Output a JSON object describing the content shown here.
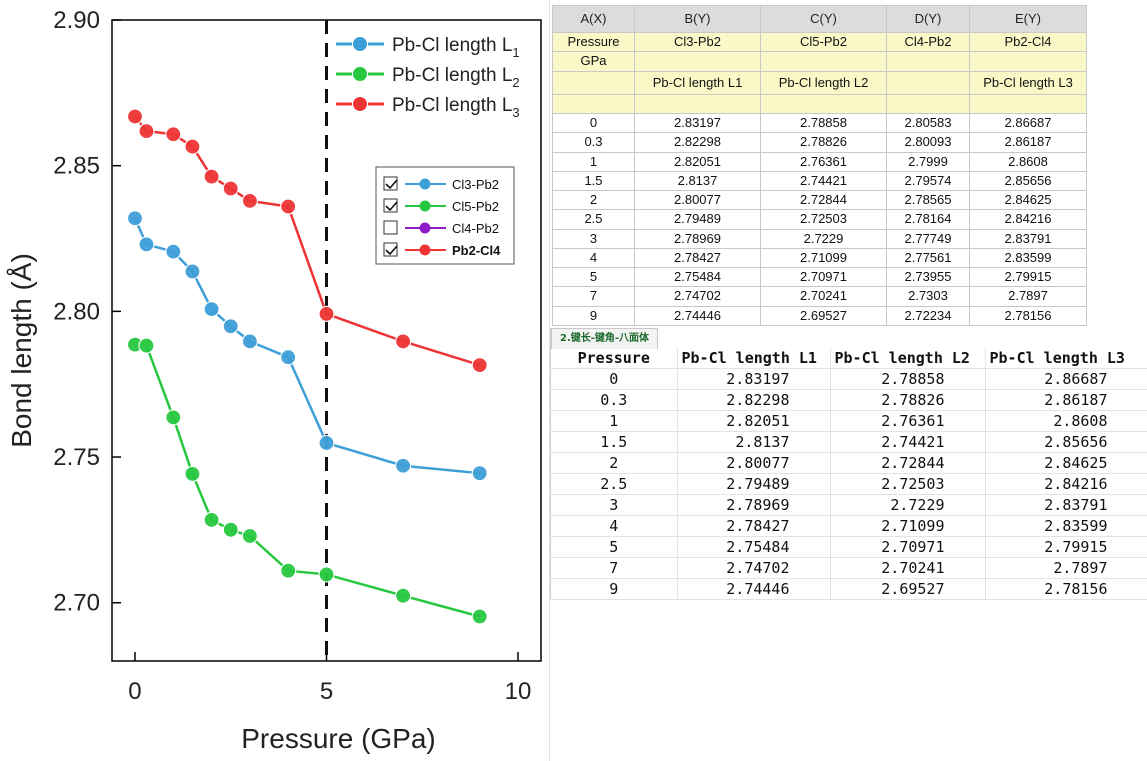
{
  "chart_data": {
    "type": "line",
    "xlabel": "Pressure (GPa)",
    "ylabel": "Bond length (Å)",
    "xlim": [
      -0.6,
      10.6
    ],
    "ylim": [
      2.68,
      2.9
    ],
    "xticks": [
      "0",
      "5",
      "10"
    ],
    "yticks": [
      "2.70",
      "2.75",
      "2.80",
      "2.85",
      "2.90"
    ],
    "x": [
      0,
      0.3,
      1,
      1.5,
      2,
      2.5,
      3,
      4,
      5,
      7,
      9
    ],
    "series": [
      {
        "name": "Pb-Cl length L1",
        "color": "#3e9fd8",
        "values": [
          2.83197,
          2.82298,
          2.82051,
          2.8137,
          2.80077,
          2.79489,
          2.78969,
          2.78427,
          2.75484,
          2.74702,
          2.74446
        ]
      },
      {
        "name": "Pb-Cl length L2",
        "color": "#27c840",
        "values": [
          2.78858,
          2.78826,
          2.76361,
          2.74421,
          2.72844,
          2.72503,
          2.7229,
          2.71099,
          2.70971,
          2.70241,
          2.69527
        ]
      },
      {
        "name": "Pb-Cl length L3",
        "color": "#ee3434",
        "values": [
          2.86687,
          2.86187,
          2.8608,
          2.85656,
          2.84625,
          2.84216,
          2.83791,
          2.83599,
          2.79915,
          2.7897,
          2.78156
        ]
      }
    ],
    "reference_line_x": 5,
    "legend": [
      {
        "main": "Pb-Cl length L",
        "sub": "1",
        "color": "#3e9fd8"
      },
      {
        "main": "Pb-Cl length L",
        "sub": "2",
        "color": "#27c840"
      },
      {
        "main": "Pb-Cl length L",
        "sub": "3",
        "color": "#ee3434"
      }
    ],
    "legend_placement": "top-right",
    "mini_legend": [
      {
        "label": "Cl3-Pb2",
        "checked": true,
        "color": "#3e9fd8",
        "bold": false
      },
      {
        "label": "Cl5-Pb2",
        "checked": true,
        "color": "#27c840",
        "bold": false
      },
      {
        "label": "Cl4-Pb2",
        "checked": false,
        "color": "#8b1cc8",
        "bold": false
      },
      {
        "label": "Pb2-Cl4",
        "checked": true,
        "color": "#ee3434",
        "bold": true
      }
    ],
    "grid": false
  },
  "worksheet": {
    "headers": [
      "A(X)",
      "B(Y)",
      "C(Y)",
      "D(Y)",
      "E(Y)"
    ],
    "long_names": [
      "Pressure",
      "Cl3-Pb2",
      "Cl5-Pb2",
      "Cl4-Pb2",
      "Pb2-Cl4"
    ],
    "units": [
      "GPa",
      "",
      "",
      "",
      ""
    ],
    "comments": [
      "",
      "Pb-Cl length L1",
      "Pb-Cl length L2",
      "",
      "Pb-Cl length L3"
    ],
    "rows": [
      [
        "0",
        "2.83197",
        "2.78858",
        "2.80583",
        "2.86687"
      ],
      [
        "0.3",
        "2.82298",
        "2.78826",
        "2.80093",
        "2.86187"
      ],
      [
        "1",
        "2.82051",
        "2.76361",
        "2.7999",
        "2.8608"
      ],
      [
        "1.5",
        "2.8137",
        "2.74421",
        "2.79574",
        "2.85656"
      ],
      [
        "2",
        "2.80077",
        "2.72844",
        "2.78565",
        "2.84625"
      ],
      [
        "2.5",
        "2.79489",
        "2.72503",
        "2.78164",
        "2.84216"
      ],
      [
        "3",
        "2.78969",
        "2.7229",
        "2.77749",
        "2.83791"
      ],
      [
        "4",
        "2.78427",
        "2.71099",
        "2.77561",
        "2.83599"
      ],
      [
        "5",
        "2.75484",
        "2.70971",
        "2.73955",
        "2.79915"
      ],
      [
        "7",
        "2.74702",
        "2.70241",
        "2.7303",
        "2.7897"
      ],
      [
        "9",
        "2.74446",
        "2.69527",
        "2.72234",
        "2.78156"
      ]
    ]
  },
  "book": {
    "tab_label": "2.键长-键角-八面体",
    "headers": [
      "Pressure",
      "Pb-Cl length L1",
      "Pb-Cl length L2",
      "Pb-Cl length L3"
    ],
    "rows": [
      [
        "0",
        "2.83197",
        "2.78858",
        "2.86687"
      ],
      [
        "0.3",
        "2.82298",
        "2.78826",
        "2.86187"
      ],
      [
        "1",
        "2.82051",
        "2.76361",
        "2.8608"
      ],
      [
        "1.5",
        "2.8137",
        "2.74421",
        "2.85656"
      ],
      [
        "2",
        "2.80077",
        "2.72844",
        "2.84625"
      ],
      [
        "2.5",
        "2.79489",
        "2.72503",
        "2.84216"
      ],
      [
        "3",
        "2.78969",
        "2.7229",
        "2.83791"
      ],
      [
        "4",
        "2.78427",
        "2.71099",
        "2.83599"
      ],
      [
        "5",
        "2.75484",
        "2.70971",
        "2.79915"
      ],
      [
        "7",
        "2.74702",
        "2.70241",
        "2.7897"
      ],
      [
        "9",
        "2.74446",
        "2.69527",
        "2.78156"
      ]
    ]
  }
}
